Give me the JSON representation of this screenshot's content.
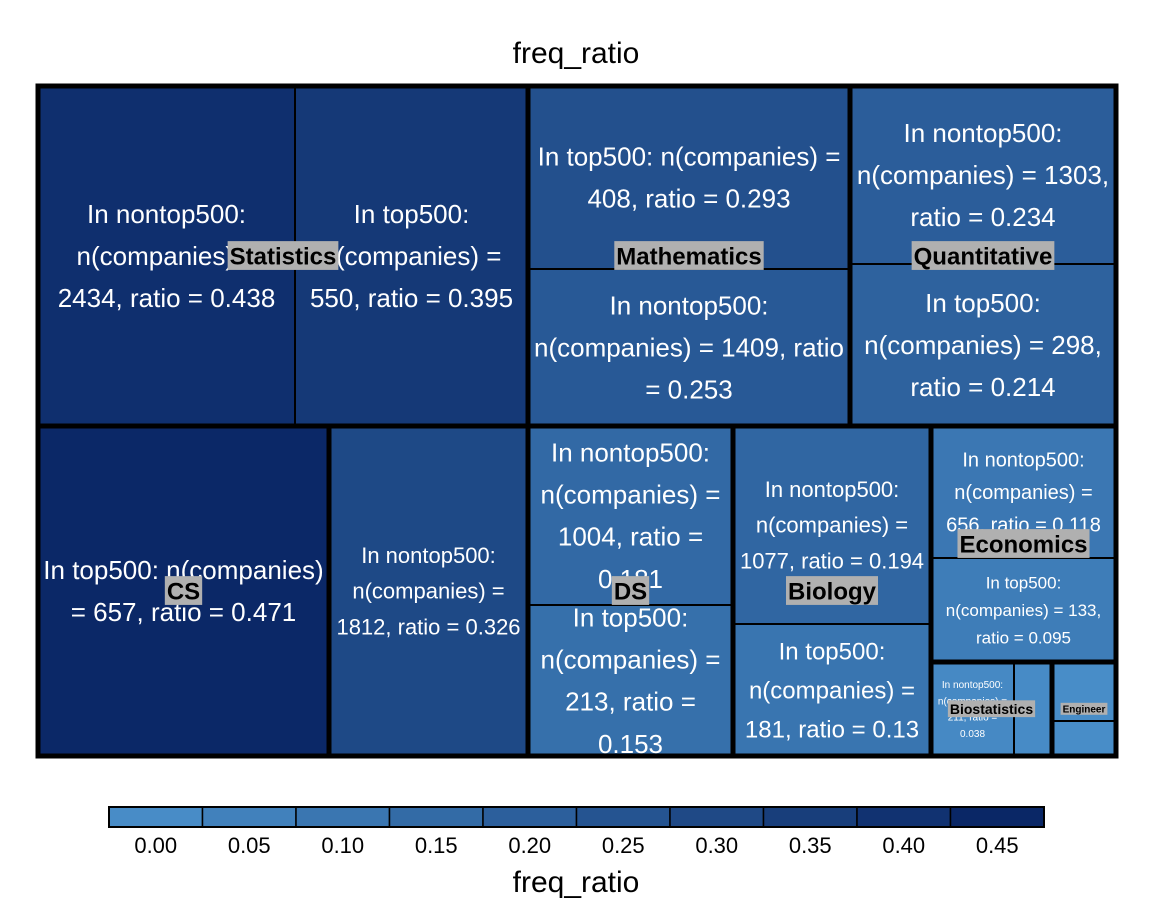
{
  "chart_data": {
    "type": "treemap",
    "title": "freq_ratio",
    "color_variable": "freq_ratio",
    "groups": [
      {
        "name": "Statistics",
        "leaves": [
          {
            "label": "In nontop500: n(companies) = 2434, ratio = 0.438",
            "set": "nontop500",
            "n_companies": 2434,
            "ratio": 0.438
          },
          {
            "label": "In top500: n(companies) = 550, ratio = 0.395",
            "set": "top500",
            "n_companies": 550,
            "ratio": 0.395
          }
        ]
      },
      {
        "name": "Mathematics",
        "leaves": [
          {
            "label": "In top500: n(companies) = 408, ratio = 0.293",
            "set": "top500",
            "n_companies": 408,
            "ratio": 0.293
          },
          {
            "label": "In nontop500: n(companies) = 1409, ratio = 0.253",
            "set": "nontop500",
            "n_companies": 1409,
            "ratio": 0.253
          }
        ]
      },
      {
        "name": "Quantitative",
        "leaves": [
          {
            "label": "In nontop500: n(companies) = 1303, ratio = 0.234",
            "set": "nontop500",
            "n_companies": 1303,
            "ratio": 0.234
          },
          {
            "label": "In top500: n(companies) = 298, ratio = 0.214",
            "set": "top500",
            "n_companies": 298,
            "ratio": 0.214
          }
        ]
      },
      {
        "name": "CS",
        "leaves": [
          {
            "label": "In top500: n(companies) = 657, ratio = 0.471",
            "set": "top500",
            "n_companies": 657,
            "ratio": 0.471
          },
          {
            "label": "In nontop500: n(companies) = 1812, ratio = 0.326",
            "set": "nontop500",
            "n_companies": 1812,
            "ratio": 0.326
          }
        ]
      },
      {
        "name": "DS",
        "leaves": [
          {
            "label": "In nontop500: n(companies) = 1004, ratio = 0.181",
            "set": "nontop500",
            "n_companies": 1004,
            "ratio": 0.181
          },
          {
            "label": "In top500: n(companies) = 213, ratio = 0.153",
            "set": "top500",
            "n_companies": 213,
            "ratio": 0.153
          }
        ]
      },
      {
        "name": "Biology",
        "leaves": [
          {
            "label": "In nontop500: n(companies) = 1077, ratio = 0.194",
            "set": "nontop500",
            "n_companies": 1077,
            "ratio": 0.194
          },
          {
            "label": "In top500: n(companies) = 181, ratio = 0.13",
            "set": "top500",
            "n_companies": 181,
            "ratio": 0.13
          }
        ]
      },
      {
        "name": "Economics",
        "leaves": [
          {
            "label": "In nontop500: n(companies) = 656, ratio = 0.118",
            "set": "nontop500",
            "n_companies": 656,
            "ratio": 0.118
          },
          {
            "label": "In top500: n(companies) = 133, ratio = 0.095",
            "set": "top500",
            "n_companies": 133,
            "ratio": 0.095
          }
        ]
      },
      {
        "name": "Biostatistics",
        "leaves": [
          {
            "label": "In nontop500: n(companies) = 211, ratio = 0.038",
            "set": "nontop500",
            "n_companies": 211,
            "ratio": 0.038
          },
          {
            "label": "",
            "set": "top500",
            "n_companies": null,
            "ratio": 0.03
          }
        ]
      },
      {
        "name": "Engineer",
        "leaves": [
          {
            "label": "",
            "set": "nontop500",
            "n_companies": null,
            "ratio": 0.02
          },
          {
            "label": "",
            "set": "top500",
            "n_companies": null,
            "ratio": 0.02
          }
        ]
      }
    ],
    "legend": {
      "title": "freq_ratio",
      "position": "bottom",
      "ticks": [
        "0.00",
        "0.05",
        "0.10",
        "0.15",
        "0.20",
        "0.25",
        "0.30",
        "0.35",
        "0.40",
        "0.45"
      ],
      "range": [
        0,
        0.475
      ],
      "color_low": "#4b92cc",
      "color_high": "#0a2766"
    }
  }
}
